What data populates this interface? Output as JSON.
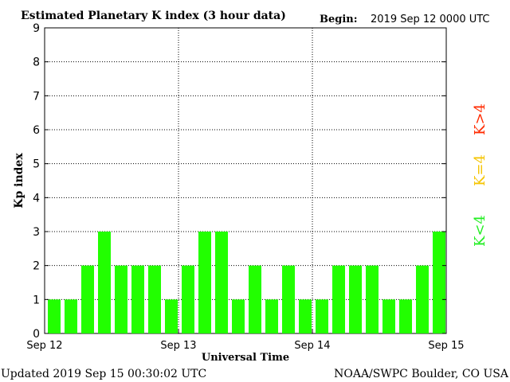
{
  "header": {
    "title": "Estimated Planetary K index (3 hour data)",
    "begin_label": "Begin:",
    "begin_value": "2019 Sep 12 0000 UTC"
  },
  "footer": {
    "updated": "Updated 2019 Sep 15 00:30:02 UTC",
    "credit": "NOAA/SWPC Boulder, CO USA"
  },
  "legend": [
    {
      "label": "K<4",
      "color": "#22ee22"
    },
    {
      "label": "K=4",
      "color": "#f5c400"
    },
    {
      "label": "K>4",
      "color": "#ff2a00"
    }
  ],
  "chart_data": {
    "type": "bar",
    "title": "Estimated Planetary K index (3 hour data)",
    "xlabel": "Universal Time",
    "ylabel": "Kp index",
    "ylim": [
      0,
      9
    ],
    "yticks": [
      0,
      1,
      2,
      3,
      4,
      5,
      6,
      7,
      8,
      9
    ],
    "xtick_labels": [
      "Sep 12",
      "Sep 13",
      "Sep 14",
      "Sep 15"
    ],
    "interval_hours": 3,
    "grid": "dotted",
    "bar_color": "#22ff00",
    "values": [
      1,
      1,
      2,
      3,
      2,
      2,
      2,
      1,
      2,
      3,
      3,
      1,
      2,
      1,
      2,
      1,
      1,
      2,
      2,
      2,
      1,
      1,
      2,
      3
    ]
  }
}
